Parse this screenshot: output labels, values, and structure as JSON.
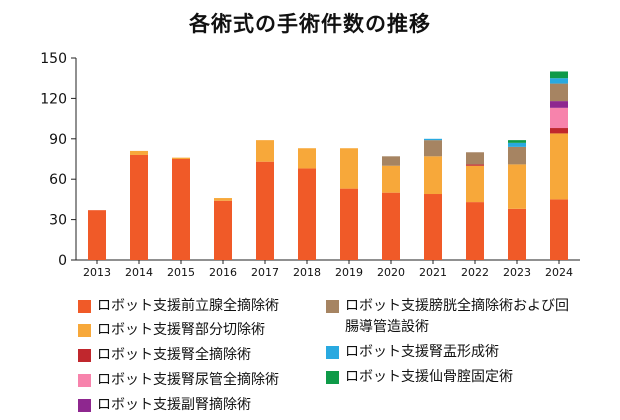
{
  "chart_data": {
    "type": "bar",
    "stacked": true,
    "title": "各術式の手術件数の推移",
    "xlabel": "",
    "ylabel": "",
    "ylim": [
      0,
      150
    ],
    "yticks": [
      0,
      30,
      60,
      90,
      120,
      150
    ],
    "grid": false,
    "legend_position": "bottom",
    "categories": [
      "2013",
      "2014",
      "2015",
      "2016",
      "2017",
      "2018",
      "2019",
      "2020",
      "2021",
      "2022",
      "2023",
      "2024"
    ],
    "series": [
      {
        "name": "ロボット支援前立腺全摘除術",
        "color": "#f05a28",
        "values": [
          37,
          78,
          75,
          44,
          73,
          68,
          53,
          50,
          49,
          43,
          38,
          45
        ]
      },
      {
        "name": "ロボット支援腎部分切除術",
        "color": "#f7a83a",
        "values": [
          0,
          3,
          1,
          2,
          16,
          15,
          30,
          20,
          28,
          27,
          33,
          49
        ]
      },
      {
        "name": "ロボット支援腎全摘除術",
        "color": "#c0272d",
        "values": [
          0,
          0,
          0,
          0,
          0,
          0,
          0,
          0,
          0,
          1,
          0,
          4
        ]
      },
      {
        "name": "ロボット支援腎尿管全摘除術",
        "color": "#f783ac",
        "values": [
          0,
          0,
          0,
          0,
          0,
          0,
          0,
          0,
          0,
          0,
          0,
          15
        ]
      },
      {
        "name": "ロボット支援副腎摘除術",
        "color": "#8e278f",
        "values": [
          0,
          0,
          0,
          0,
          0,
          0,
          0,
          0,
          0,
          0,
          0,
          5
        ]
      },
      {
        "name": "ロボット支援膀胱全摘除術および回腸導管造設術",
        "color": "#a68462",
        "values": [
          0,
          0,
          0,
          0,
          0,
          0,
          0,
          7,
          12,
          9,
          13,
          13
        ]
      },
      {
        "name": "ロボット支援腎盂形成術",
        "color": "#29a9e0",
        "values": [
          0,
          0,
          0,
          0,
          0,
          0,
          0,
          0,
          1,
          0,
          3,
          4
        ]
      },
      {
        "name": "ロボット支援仙骨腟固定術",
        "color": "#0e9a48",
        "values": [
          0,
          0,
          0,
          0,
          0,
          0,
          0,
          0,
          0,
          0,
          2,
          5
        ]
      }
    ]
  }
}
